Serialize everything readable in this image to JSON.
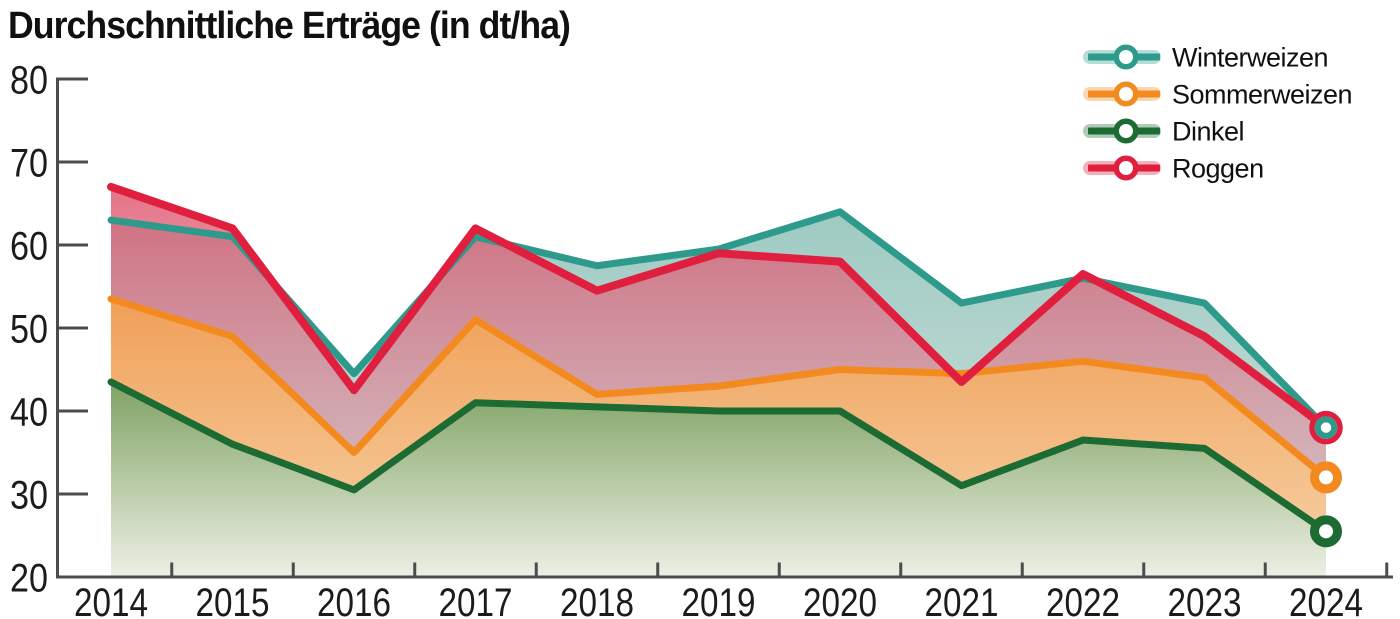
{
  "page": {
    "background": "#ffffff"
  },
  "chart_data": {
    "type": "area",
    "title": "Durchschnittliche Erträge (in dt/ha)",
    "unit": "dt/ha",
    "categories": [
      2014,
      2015,
      2016,
      2017,
      2018,
      2019,
      2020,
      2021,
      2022,
      2023,
      2024
    ],
    "x_tick_labels": [
      "2014",
      "2015",
      "2016",
      "2017",
      "2018",
      "2019",
      "2020",
      "2021",
      "2022",
      "2023",
      "2024"
    ],
    "y_tick_labels": [
      "80",
      "70",
      "60",
      "50",
      "40",
      "30",
      "20"
    ],
    "ylim": [
      20,
      80
    ],
    "grid": "none",
    "legend_position": "top-right",
    "axis_color": "#4c4c4c",
    "text_color": "#1b1b1b",
    "marker_style": "open-circle-at-last-point",
    "series": [
      {
        "name": "Winterweizen",
        "color": "#2D9A8C",
        "fill_top": "#9ECAC2",
        "fill_bottom": "#D3E4DF",
        "values": [
          63,
          61,
          44.5,
          61,
          57.5,
          59.5,
          64,
          53,
          56,
          53,
          38
        ]
      },
      {
        "name": "Sommerweizen",
        "color": "#F28A1F",
        "fill_top": "#F0A058",
        "fill_bottom": "#F7D3A9",
        "values": [
          53.5,
          49,
          35,
          51,
          42,
          43,
          45,
          44.5,
          46,
          44,
          32
        ]
      },
      {
        "name": "Dinkel",
        "color": "#1C6B33",
        "fill_top": "#7FA263",
        "fill_bottom": "#EDF0E5",
        "values": [
          43.5,
          36,
          30.5,
          41,
          40.5,
          40,
          40,
          31,
          36.5,
          35.5,
          25.5
        ]
      },
      {
        "name": "Roggen",
        "color": "#E01F3E",
        "fill_top": "rgba(224,80,106,0.80)",
        "fill_bottom": "rgba(226,170,182,0.45)",
        "values": [
          67,
          62,
          42.5,
          62,
          54.5,
          59,
          58,
          43.5,
          56.5,
          49,
          38
        ]
      }
    ]
  }
}
